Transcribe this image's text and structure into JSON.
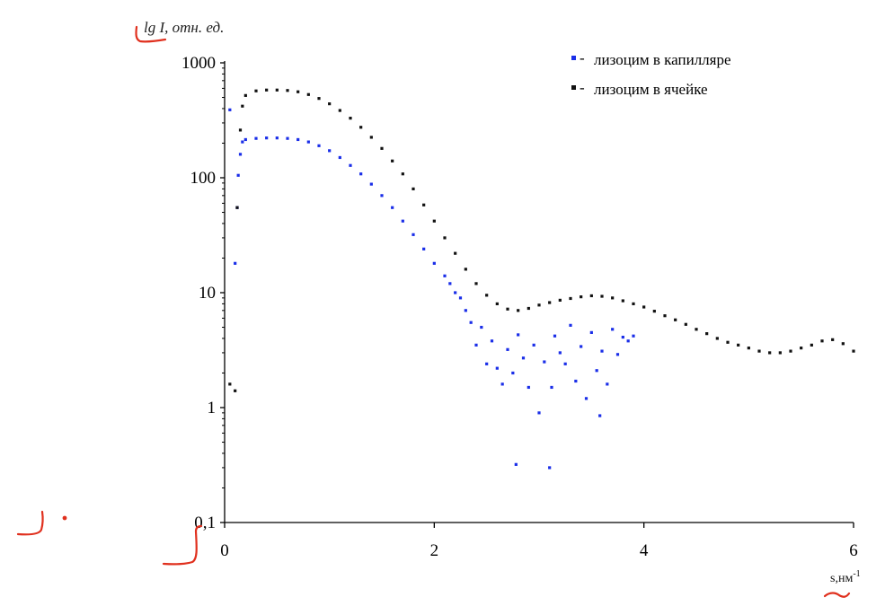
{
  "chart_data": {
    "type": "scatter",
    "title": "",
    "ylabel": "lg I, отн. ед.",
    "xlabel": "s,нм",
    "xlabel_superscript": "-1",
    "x_ticks": [
      "0",
      "2",
      "4",
      "6"
    ],
    "y_ticks": [
      "0,1",
      "1",
      "10",
      "100",
      "1000"
    ],
    "xlim": [
      0,
      6
    ],
    "ylim": [
      0.1,
      1000
    ],
    "y_scale": "log",
    "grid": false,
    "legend_position": "top-right",
    "series": [
      {
        "name": "лизоцим в капилляре",
        "marker": "-",
        "color": "#1a2ee8",
        "points": [
          [
            0.05,
            390
          ],
          [
            0.1,
            18
          ],
          [
            0.12,
            55
          ],
          [
            0.13,
            105
          ],
          [
            0.15,
            160
          ],
          [
            0.17,
            205
          ],
          [
            0.2,
            215
          ],
          [
            0.3,
            220
          ],
          [
            0.4,
            222
          ],
          [
            0.5,
            222
          ],
          [
            0.6,
            220
          ],
          [
            0.7,
            215
          ],
          [
            0.8,
            205
          ],
          [
            0.9,
            190
          ],
          [
            1.0,
            172
          ],
          [
            1.1,
            150
          ],
          [
            1.2,
            128
          ],
          [
            1.3,
            108
          ],
          [
            1.4,
            88
          ],
          [
            1.5,
            70
          ],
          [
            1.6,
            55
          ],
          [
            1.7,
            42
          ],
          [
            1.8,
            32
          ],
          [
            1.9,
            24
          ],
          [
            2.0,
            18
          ],
          [
            2.1,
            14
          ],
          [
            2.15,
            12
          ],
          [
            2.2,
            10
          ],
          [
            2.25,
            9
          ],
          [
            2.3,
            7
          ],
          [
            2.35,
            5.5
          ],
          [
            2.4,
            3.5
          ],
          [
            2.45,
            5
          ],
          [
            2.5,
            2.4
          ],
          [
            2.55,
            3.8
          ],
          [
            2.6,
            2.2
          ],
          [
            2.65,
            1.6
          ],
          [
            2.7,
            3.2
          ],
          [
            2.75,
            2.0
          ],
          [
            2.78,
            0.32
          ],
          [
            2.8,
            4.3
          ],
          [
            2.85,
            2.7
          ],
          [
            2.9,
            1.5
          ],
          [
            2.95,
            3.5
          ],
          [
            3.0,
            0.9
          ],
          [
            3.05,
            2.5
          ],
          [
            3.1,
            0.3
          ],
          [
            3.12,
            1.5
          ],
          [
            3.15,
            4.2
          ],
          [
            3.2,
            3.0
          ],
          [
            3.25,
            2.4
          ],
          [
            3.3,
            5.2
          ],
          [
            3.35,
            1.7
          ],
          [
            3.4,
            3.4
          ],
          [
            3.45,
            1.2
          ],
          [
            3.5,
            4.5
          ],
          [
            3.55,
            2.1
          ],
          [
            3.58,
            0.85
          ],
          [
            3.6,
            3.1
          ],
          [
            3.65,
            1.6
          ],
          [
            3.7,
            4.8
          ],
          [
            3.75,
            2.9
          ],
          [
            3.8,
            4.1
          ],
          [
            3.85,
            3.8
          ],
          [
            3.9,
            4.2
          ]
        ]
      },
      {
        "name": "лизоцим в ячейке",
        "marker": "-",
        "color": "#111111",
        "points": [
          [
            0.05,
            1.6
          ],
          [
            0.1,
            1.4
          ],
          [
            0.12,
            55
          ],
          [
            0.15,
            260
          ],
          [
            0.17,
            420
          ],
          [
            0.2,
            520
          ],
          [
            0.3,
            570
          ],
          [
            0.4,
            580
          ],
          [
            0.5,
            580
          ],
          [
            0.6,
            575
          ],
          [
            0.7,
            560
          ],
          [
            0.8,
            530
          ],
          [
            0.9,
            490
          ],
          [
            1.0,
            440
          ],
          [
            1.1,
            385
          ],
          [
            1.2,
            330
          ],
          [
            1.3,
            275
          ],
          [
            1.4,
            225
          ],
          [
            1.5,
            180
          ],
          [
            1.6,
            140
          ],
          [
            1.7,
            108
          ],
          [
            1.8,
            80
          ],
          [
            1.9,
            58
          ],
          [
            2.0,
            42
          ],
          [
            2.1,
            30
          ],
          [
            2.2,
            22
          ],
          [
            2.3,
            16
          ],
          [
            2.4,
            12
          ],
          [
            2.5,
            9.5
          ],
          [
            2.6,
            8
          ],
          [
            2.7,
            7.2
          ],
          [
            2.8,
            7
          ],
          [
            2.9,
            7.3
          ],
          [
            3.0,
            7.8
          ],
          [
            3.1,
            8.2
          ],
          [
            3.2,
            8.6
          ],
          [
            3.3,
            8.9
          ],
          [
            3.4,
            9.2
          ],
          [
            3.5,
            9.4
          ],
          [
            3.6,
            9.3
          ],
          [
            3.7,
            9.0
          ],
          [
            3.8,
            8.5
          ],
          [
            3.9,
            8.0
          ],
          [
            4.0,
            7.5
          ],
          [
            4.1,
            6.9
          ],
          [
            4.2,
            6.3
          ],
          [
            4.3,
            5.8
          ],
          [
            4.4,
            5.3
          ],
          [
            4.5,
            4.8
          ],
          [
            4.6,
            4.4
          ],
          [
            4.7,
            4.0
          ],
          [
            4.8,
            3.7
          ],
          [
            4.9,
            3.5
          ],
          [
            5.0,
            3.3
          ],
          [
            5.1,
            3.1
          ],
          [
            5.2,
            3.0
          ],
          [
            5.3,
            3.0
          ],
          [
            5.4,
            3.1
          ],
          [
            5.5,
            3.3
          ],
          [
            5.6,
            3.5
          ],
          [
            5.7,
            3.8
          ],
          [
            5.8,
            3.9
          ],
          [
            5.9,
            3.6
          ],
          [
            6.0,
            3.1
          ]
        ]
      }
    ]
  }
}
